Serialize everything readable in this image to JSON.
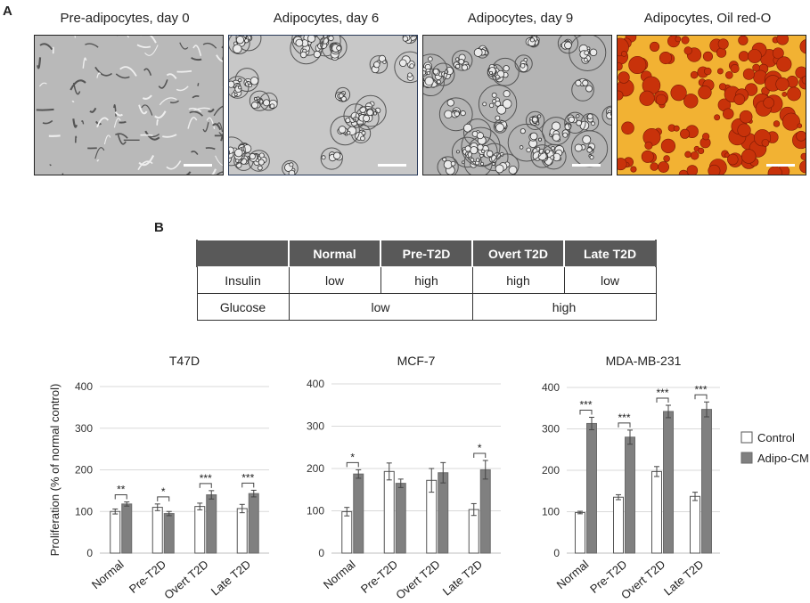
{
  "panel_labels": {
    "a": "A",
    "b": "B"
  },
  "images": [
    {
      "title": "Pre-adipocytes, day 0"
    },
    {
      "title": "Adipocytes, day 6"
    },
    {
      "title": "Adipocytes, day 9"
    },
    {
      "title": "Adipocytes, Oil red-O"
    }
  ],
  "table": {
    "headers": [
      "",
      "Normal",
      "Pre-T2D",
      "Overt T2D",
      "Late T2D"
    ],
    "insulin": {
      "label": "Insulin",
      "values": [
        "low",
        "high",
        "high",
        "low"
      ]
    },
    "glucose": {
      "label": "Glucose",
      "values": [
        "low",
        "high"
      ]
    }
  },
  "legend": {
    "control": "Control",
    "adipo": "Adipo-CM"
  },
  "colors": {
    "control_fill": "#ffffff",
    "adipo_fill": "#808080",
    "table_header": "#595959",
    "oil_bg": "#f2b233",
    "oil_drop": "#c8320a"
  },
  "chart_data": [
    {
      "type": "bar",
      "title": "T47D",
      "ylabel": "Proliferation (% of normal control)",
      "ylim": [
        0,
        400
      ],
      "yticks": [
        0,
        100,
        200,
        300,
        400
      ],
      "categories": [
        "Normal",
        "Pre-T2D",
        "Overt T2D",
        "Late T2D"
      ],
      "series": [
        {
          "name": "Control",
          "values": [
            100,
            110,
            112,
            107
          ],
          "errors": [
            6,
            8,
            8,
            10
          ]
        },
        {
          "name": "Adipo-CM",
          "values": [
            118,
            95,
            140,
            143
          ],
          "errors": [
            5,
            5,
            10,
            8
          ]
        }
      ],
      "significance": [
        "**",
        "*",
        "***",
        "***"
      ]
    },
    {
      "type": "bar",
      "title": "MCF-7",
      "ylabel": "",
      "ylim": [
        0,
        400
      ],
      "yticks": [
        0,
        100,
        200,
        300,
        400
      ],
      "categories": [
        "Normal",
        "Pre-T2D",
        "Overt T2D",
        "Late T2D"
      ],
      "series": [
        {
          "name": "Control",
          "values": [
            98,
            193,
            172,
            103
          ],
          "errors": [
            10,
            20,
            28,
            14
          ]
        },
        {
          "name": "Adipo-CM",
          "values": [
            187,
            165,
            190,
            197
          ],
          "errors": [
            10,
            10,
            24,
            22
          ]
        }
      ],
      "significance": [
        "*",
        "",
        "",
        "*"
      ]
    },
    {
      "type": "bar",
      "title": "MDA-MB-231",
      "ylabel": "",
      "ylim": [
        0,
        400
      ],
      "yticks": [
        0,
        100,
        200,
        300,
        400
      ],
      "categories": [
        "Normal",
        "Pre-T2D",
        "Overt T2D",
        "Late T2D"
      ],
      "series": [
        {
          "name": "Control",
          "values": [
            98,
            135,
            197,
            137
          ],
          "errors": [
            3,
            6,
            12,
            10
          ]
        },
        {
          "name": "Adipo-CM",
          "values": [
            313,
            280,
            342,
            347
          ],
          "errors": [
            15,
            17,
            15,
            18
          ]
        }
      ],
      "significance": [
        "***",
        "***",
        "***",
        "***"
      ]
    }
  ]
}
